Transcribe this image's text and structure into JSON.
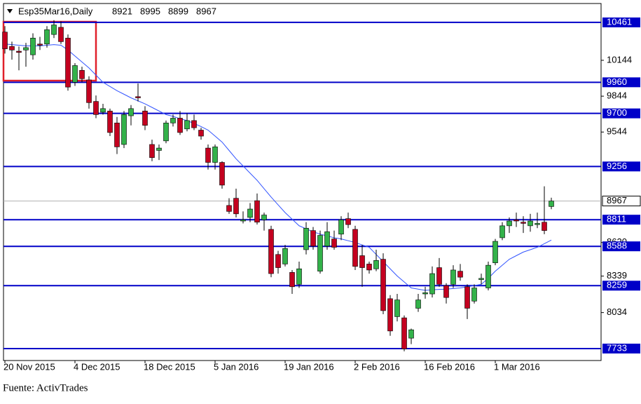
{
  "chart_data": {
    "type": "candlestick",
    "title": "Esp35Mar16,Daily",
    "categories": [
      "20 Nov 2015",
      null,
      null,
      null,
      null,
      null,
      null,
      null,
      null,
      null,
      "4 Dec 2015",
      null,
      null,
      null,
      null,
      null,
      null,
      null,
      null,
      null,
      "18 Dec 2015",
      null,
      null,
      null,
      null,
      null,
      null,
      null,
      null,
      null,
      "5 Jan 2016",
      null,
      null,
      null,
      null,
      null,
      null,
      null,
      null,
      null,
      "19 Jan 2016",
      null,
      null,
      null,
      null,
      null,
      null,
      null,
      null,
      null,
      "2 Feb 2016",
      null,
      null,
      null,
      null,
      null,
      null,
      null,
      null,
      null,
      "16 Feb 2016",
      null,
      null,
      null,
      null,
      null,
      null,
      null,
      null,
      null,
      "1 Mar 2016",
      null,
      null,
      null,
      null,
      null,
      null,
      null,
      null
    ],
    "open": [
      10380,
      10260,
      10220,
      10230,
      10190,
      10280,
      10280,
      10360,
      10420,
      10330,
      9960,
      10060,
      9980,
      9800,
      9710,
      9720,
      9620,
      9440,
      9680,
      9840,
      9720,
      9440,
      9390,
      9470,
      9620,
      9660,
      9570,
      9640,
      9560,
      9410,
      9290,
      9290,
      8930,
      8990,
      8800,
      8830,
      8970,
      8810,
      8730,
      8520,
      8440,
      8370,
      8270,
      8560,
      8720,
      8380,
      8590,
      8650,
      8690,
      8820,
      8730,
      8510,
      8440,
      8400,
      8480,
      8150,
      8000,
      7990,
      7820,
      8070,
      8190,
      8190,
      8410,
      8260,
      8270,
      8380,
      8250,
      8130,
      8310,
      8240,
      8450,
      8660,
      8760,
      8810,
      8790,
      8760,
      8770,
      8790,
      8921
    ],
    "high": [
      10430,
      10300,
      10260,
      10290,
      10370,
      10340,
      10430,
      10480,
      10470,
      10360,
      10120,
      10090,
      10010,
      9850,
      9780,
      9740,
      9670,
      9720,
      9770,
      9950,
      9760,
      9480,
      9440,
      9640,
      9690,
      9720,
      9700,
      9690,
      9580,
      9440,
      9440,
      9300,
      8990,
      9070,
      8880,
      8950,
      9030,
      8870,
      8760,
      8550,
      8600,
      8390,
      8460,
      8790,
      8750,
      8720,
      8790,
      8720,
      8840,
      8870,
      8760,
      8600,
      8460,
      8560,
      8530,
      8180,
      8190,
      8010,
      7900,
      8190,
      8250,
      8420,
      8490,
      8280,
      8430,
      8440,
      8270,
      8270,
      8360,
      8460,
      8650,
      8790,
      8830,
      8870,
      8840,
      8860,
      8870,
      9090,
      8995
    ],
    "low": [
      10200,
      10150,
      10060,
      10090,
      10150,
      10230,
      10250,
      10330,
      10280,
      9890,
      9930,
      9960,
      9740,
      9660,
      9690,
      9510,
      9360,
      9410,
      9600,
      9800,
      9560,
      9300,
      9310,
      9450,
      9590,
      9520,
      9550,
      9560,
      9480,
      9230,
      9230,
      9070,
      8860,
      8830,
      8780,
      8790,
      8770,
      8720,
      8330,
      8360,
      8420,
      8190,
      8240,
      8520,
      8560,
      8360,
      8560,
      8560,
      8640,
      8740,
      8390,
      8250,
      8360,
      8380,
      8020,
      7840,
      7960,
      7710,
      7770,
      8040,
      8150,
      8160,
      8250,
      8110,
      8240,
      8300,
      7980,
      8110,
      8270,
      8220,
      8430,
      8640,
      8700,
      8750,
      8700,
      8710,
      8740,
      8690,
      8899
    ],
    "close": [
      10240,
      10230,
      10210,
      10250,
      10330,
      10270,
      10400,
      10440,
      10300,
      9920,
      10100,
      9990,
      9790,
      9690,
      9740,
      9540,
      9420,
      9690,
      9740,
      9830,
      9600,
      9330,
      9410,
      9620,
      9660,
      9540,
      9640,
      9580,
      9510,
      9290,
      9420,
      9100,
      8880,
      8860,
      8810,
      8900,
      8790,
      8850,
      8360,
      8410,
      8570,
      8250,
      8400,
      8740,
      8590,
      8680,
      8710,
      8580,
      8810,
      8770,
      8420,
      8410,
      8390,
      8470,
      8050,
      7880,
      8140,
      7730,
      7890,
      8140,
      8200,
      8360,
      8270,
      8160,
      8390,
      8330,
      8070,
      8240,
      8320,
      8430,
      8630,
      8760,
      8800,
      8800,
      8780,
      8800,
      8780,
      8720,
      8967
    ],
    "up_color": "#33b24a",
    "down_color": "#c40020",
    "moving_average": {
      "color": "#3355ff",
      "values": [
        10280,
        10275,
        10270,
        10265,
        10265,
        10265,
        10270,
        10275,
        10270,
        10230,
        10180,
        10130,
        10080,
        10020,
        9960,
        9925,
        9890,
        9860,
        9830,
        9805,
        9780,
        9750,
        9720,
        9690,
        9675,
        9655,
        9640,
        9615,
        9590,
        9560,
        9510,
        9460,
        9390,
        9320,
        9260,
        9200,
        9140,
        9070,
        9000,
        8935,
        8870,
        8815,
        8760,
        8735,
        8710,
        8690,
        8675,
        8660,
        8650,
        8635,
        8620,
        8600,
        8580,
        8520,
        8460,
        8400,
        8340,
        8290,
        8240,
        8230,
        8220,
        8225,
        8228,
        8230,
        8235,
        8240,
        8250,
        8260,
        8270,
        8320,
        8380,
        8430,
        8480,
        8510,
        8540,
        8560,
        8580,
        8610,
        8640
      ]
    },
    "levels": {
      "color": "#0000c8",
      "values": [
        10461,
        9960,
        9700,
        9256,
        8811,
        8588,
        8259,
        7733
      ]
    },
    "ylim": [
      7633,
      10619
    ],
    "yticks": [
      10144,
      9844,
      9544,
      8620,
      8339,
      8034
    ],
    "source": "Fuente: ActivTrades"
  }
}
